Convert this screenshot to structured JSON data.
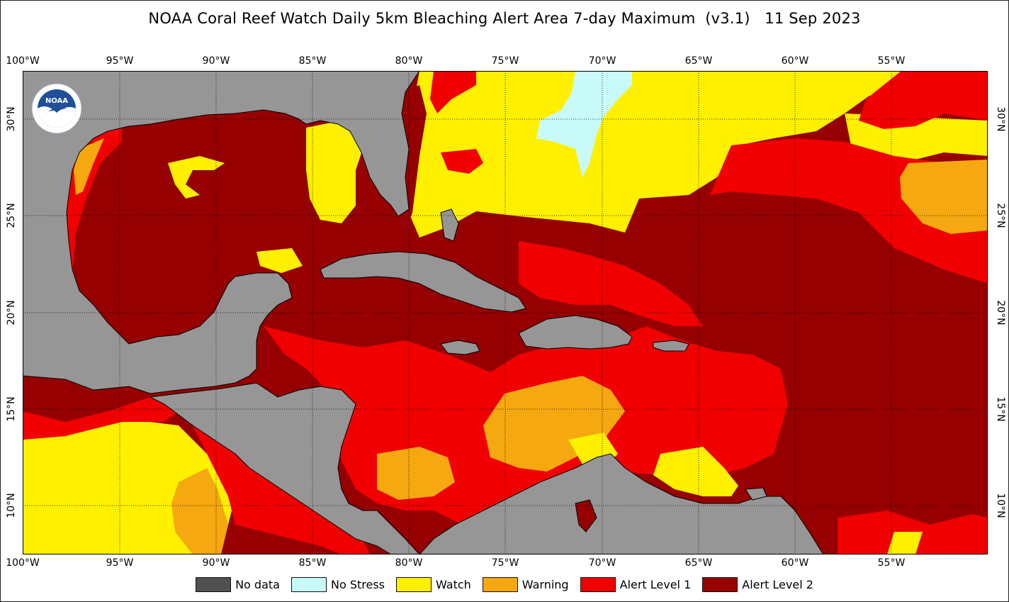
{
  "title": "NOAA Coral Reef Watch Daily 5km Bleaching Alert Area 7-day Maximum  (v3.1)   11 Sep 2023",
  "logo_text": "NOAA",
  "lon_labels": [
    "100°W",
    "95°W",
    "90°W",
    "85°W",
    "80°W",
    "75°W",
    "70°W",
    "65°W",
    "60°W",
    "55°W"
  ],
  "lat_labels": [
    "30°N",
    "25°N",
    "20°N",
    "15°N",
    "10°N"
  ],
  "legend": [
    {
      "key": "nodata",
      "label": "No data",
      "color": "#505050"
    },
    {
      "key": "nostress",
      "label": "No Stress",
      "color": "#c8fafa"
    },
    {
      "key": "watch",
      "label": "Watch",
      "color": "#fff000"
    },
    {
      "key": "warning",
      "label": "Warning",
      "color": "#f5a80f"
    },
    {
      "key": "alert1",
      "label": "Alert Level 1",
      "color": "#f00000"
    },
    {
      "key": "alert2",
      "label": "Alert Level 2",
      "color": "#960000"
    }
  ],
  "colors": {
    "land": "#969696",
    "ocean_alert2": "#960000"
  }
}
